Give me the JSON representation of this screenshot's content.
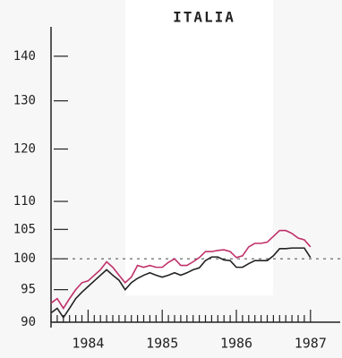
{
  "chart_data": {
    "type": "line",
    "title": "ITALIA",
    "categories": [
      null,
      null,
      null,
      null,
      null,
      null,
      "1984",
      null,
      null,
      null,
      null,
      null,
      null,
      null,
      null,
      null,
      null,
      null,
      "1985",
      null,
      null,
      null,
      null,
      null,
      null,
      null,
      null,
      null,
      null,
      null,
      "1986",
      null,
      null,
      null,
      null,
      null,
      null,
      null,
      null,
      null,
      null,
      null,
      "1987"
    ],
    "series": [
      {
        "color": "#c0306a",
        "values": [
          92.9,
          93.6,
          92.1,
          93.6,
          95,
          96.1,
          96.4,
          97.3,
          98.2,
          99.5,
          98.6,
          97.3,
          96.1,
          97,
          98.9,
          98.6,
          98.9,
          98.6,
          98.6,
          99.4,
          100,
          98.9,
          98.9,
          99.5,
          100.2,
          101.2,
          101.2,
          101.4,
          101.5,
          101.2,
          100.2,
          100.5,
          102,
          102.6,
          102.6,
          102.8,
          103.8,
          104.8,
          104.8,
          104.3,
          103.5,
          103.2,
          102
        ]
      },
      {
        "color": "#222222",
        "values": [
          91.4,
          92.1,
          90.7,
          92.1,
          93.6,
          94.6,
          95.5,
          96.4,
          97.3,
          98.2,
          97.3,
          96.5,
          95,
          96.1,
          96.8,
          97.3,
          97.7,
          97.3,
          97,
          97.3,
          97.7,
          97.3,
          97.7,
          98.2,
          98.5,
          99.7,
          100.3,
          100.3,
          99.8,
          99.7,
          98.6,
          98.6,
          99.2,
          99.7,
          99.7,
          99.7,
          100.5,
          101.7,
          101.7,
          101.8,
          101.8,
          101.8,
          100.2
        ]
      }
    ],
    "ylim": [
      90,
      147
    ],
    "yticks": [
      90,
      95,
      100,
      105,
      110,
      120,
      130,
      140
    ],
    "log": true,
    "reference_line": 100
  }
}
